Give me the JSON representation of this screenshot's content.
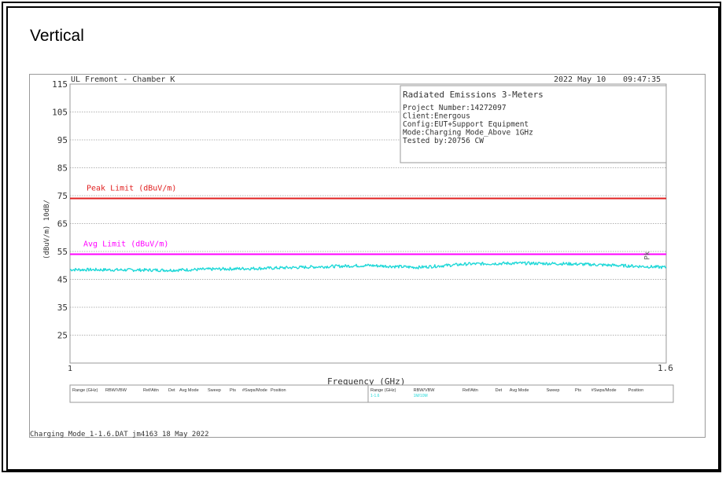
{
  "page": {
    "heading": "Vertical"
  },
  "header": {
    "lab": "UL Fremont - Chamber K",
    "date": "2022 May 10",
    "time": "09:47:35"
  },
  "info_box": {
    "title": "Radiated Emissions 3-Meters",
    "lines": [
      "Project Number:14272097",
      "Client:Energous",
      "Config:EUT+Support Equipment",
      "Mode:Charging Mode_Above 1GHz",
      "Tested by:20756 CW"
    ]
  },
  "footer": {
    "filename": "Charging Mode_1-1.6.DAT  jm4163 18 May 2022"
  },
  "table": {
    "headers": [
      "Range (GHz)",
      "RBW/VBW",
      "Ref/Attn",
      "Det",
      "Avg Mode",
      "Sweep",
      "Pts",
      "#Swps/Mode",
      "Position"
    ],
    "row": [
      "1-1.6",
      "1M/10M",
      "",
      "",
      "",
      "",
      "",
      "",
      ""
    ]
  },
  "chart_data": {
    "type": "line",
    "title": "",
    "xlabel": "Frequency (GHz)",
    "ylabel": "(dBuV/m)  10dB/",
    "xlim": [
      1,
      1.6
    ],
    "ylim": [
      15,
      115
    ],
    "x_tick_labels": [
      "1",
      "1.6"
    ],
    "y_ticks": [
      115,
      105,
      95,
      85,
      75,
      65,
      55,
      45,
      35,
      25
    ],
    "grid": true,
    "colors": {
      "peak": "#e02020",
      "avg": "#ff00ff",
      "trace": "#1fd8d8"
    },
    "limits": [
      {
        "name": "Peak Limit (dBuV/m)",
        "value": 74
      },
      {
        "name": "Avg Limit (dBuV/m)",
        "value": 54
      }
    ],
    "trace_label": "Pk",
    "series": [
      {
        "x": [
          1.0,
          1.05,
          1.1,
          1.15,
          1.2,
          1.25,
          1.3,
          1.35,
          1.4,
          1.45,
          1.5,
          1.55,
          1.6
        ],
        "values": [
          48.5,
          48.4,
          48.3,
          48.7,
          49.0,
          49.5,
          50.0,
          49.3,
          50.5,
          50.8,
          50.6,
          50.0,
          49.3
        ]
      }
    ]
  }
}
